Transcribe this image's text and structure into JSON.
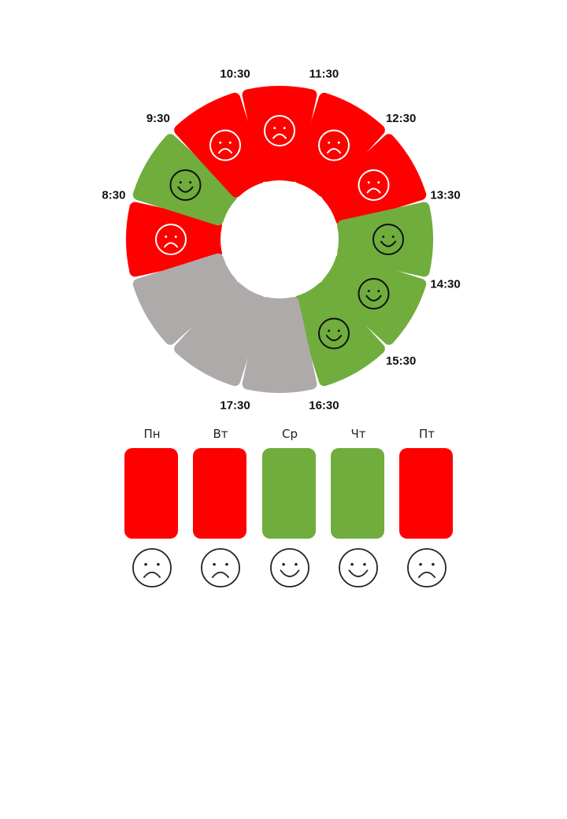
{
  "colors": {
    "bad": "#ff0000",
    "good": "#70ad3d",
    "empty": "#aeaaaa",
    "face_dark": "#111111",
    "face_light": "#ffffff"
  },
  "wheel": {
    "slots": [
      {
        "time": "8:30",
        "mood": "sad"
      },
      {
        "time": "9:30",
        "mood": "happy"
      },
      {
        "time": "10:30",
        "mood": "sad"
      },
      {
        "time": "11:30",
        "mood": "sad"
      },
      {
        "time": "12:30",
        "mood": "sad"
      },
      {
        "time": "13:30",
        "mood": "sad"
      },
      {
        "time": "14:30",
        "mood": "happy"
      },
      {
        "time": "15:30",
        "mood": "happy"
      },
      {
        "time": "16:30",
        "mood": "happy"
      },
      {
        "time": "17:30",
        "mood": "empty"
      },
      {
        "time": "",
        "mood": "empty"
      },
      {
        "time": "",
        "mood": "empty"
      }
    ]
  },
  "week": {
    "days": [
      {
        "label": "Пн",
        "mood": "sad"
      },
      {
        "label": "Вт",
        "mood": "sad"
      },
      {
        "label": "Ср",
        "mood": "happy"
      },
      {
        "label": "Чт",
        "mood": "happy"
      },
      {
        "label": "Пт",
        "mood": "sad"
      }
    ]
  }
}
